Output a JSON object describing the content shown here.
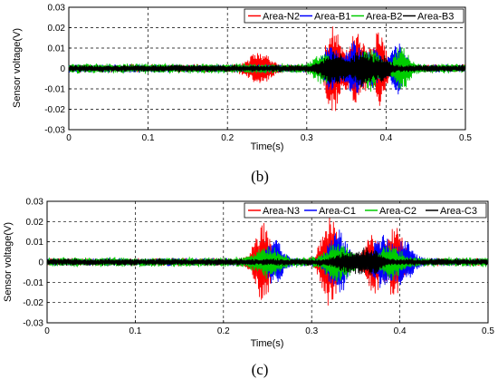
{
  "chart_data": [
    {
      "type": "line",
      "panel": "b",
      "caption": "(b)",
      "xlabel": "Time(s)",
      "ylabel": "Sensor voltage(V)",
      "xlim": [
        0,
        0.5
      ],
      "ylim": [
        -0.03,
        0.03
      ],
      "xticks": [
        0,
        0.1,
        0.2,
        0.3,
        0.4,
        0.5
      ],
      "xtick_labels": [
        "0",
        "0.1",
        "0.2",
        "0.3",
        "0.4",
        "0.5"
      ],
      "yticks": [
        -0.03,
        -0.02,
        -0.01,
        0,
        0.01,
        0.02,
        0.03
      ],
      "ytick_labels": [
        "-0.03",
        "-0.02",
        "-0.01",
        "0",
        "0.01",
        "0.02",
        "0.03"
      ],
      "grid": true,
      "legend_position": "top-right",
      "series": [
        {
          "name": "Area-N2",
          "color": "#ff0000",
          "baseline": 0.002,
          "bursts": [
            [
              0.24,
              0.0065,
              0.012
            ],
            [
              0.333,
              0.021,
              0.008
            ],
            [
              0.362,
              0.016,
              0.009
            ],
            [
              0.39,
              0.018,
              0.008
            ]
          ]
        },
        {
          "name": "Area-B1",
          "color": "#0000ff",
          "baseline": 0.002,
          "bursts": [
            [
              0.33,
              0.01,
              0.008
            ],
            [
              0.36,
              0.012,
              0.009
            ],
            [
              0.385,
              0.008,
              0.008
            ],
            [
              0.415,
              0.011,
              0.008
            ]
          ]
        },
        {
          "name": "Area-B2",
          "color": "#00cc00",
          "baseline": 0.0025,
          "bursts": [
            [
              0.32,
              0.006,
              0.01
            ],
            [
              0.38,
              0.009,
              0.01
            ],
            [
              0.42,
              0.009,
              0.008
            ]
          ]
        },
        {
          "name": "Area-B3",
          "color": "#000000",
          "baseline": 0.0018,
          "bursts": [
            [
              0.335,
              0.007,
              0.012
            ],
            [
              0.37,
              0.008,
              0.01
            ],
            [
              0.395,
              0.005,
              0.008
            ]
          ]
        }
      ]
    },
    {
      "type": "line",
      "panel": "c",
      "caption": "(c)",
      "xlabel": "Time(s)",
      "ylabel": "Sensor voltage(V)",
      "xlim": [
        0,
        0.5
      ],
      "ylim": [
        -0.03,
        0.03
      ],
      "xticks": [
        0,
        0.1,
        0.2,
        0.3,
        0.4,
        0.5
      ],
      "xtick_labels": [
        "0",
        "0.1",
        "0.2",
        "0.3",
        "0.4",
        "0.5"
      ],
      "yticks": [
        -0.03,
        -0.02,
        -0.01,
        0,
        0.01,
        0.02,
        0.03
      ],
      "ytick_labels": [
        "-0.03",
        "-0.02",
        "-0.01",
        "0",
        "0.01",
        "0.02",
        "0.03"
      ],
      "grid": true,
      "legend_position": "top-right",
      "series": [
        {
          "name": "Area-N3",
          "color": "#ff0000",
          "baseline": 0.002,
          "bursts": [
            [
              0.245,
              0.019,
              0.008
            ],
            [
              0.32,
              0.022,
              0.008
            ],
            [
              0.37,
              0.014,
              0.008
            ],
            [
              0.395,
              0.017,
              0.008
            ]
          ]
        },
        {
          "name": "Area-C1",
          "color": "#0000ff",
          "baseline": 0.002,
          "bursts": [
            [
              0.258,
              0.01,
              0.008
            ],
            [
              0.33,
              0.016,
              0.009
            ],
            [
              0.38,
              0.012,
              0.009
            ],
            [
              0.405,
              0.01,
              0.008
            ]
          ]
        },
        {
          "name": "Area-C2",
          "color": "#00cc00",
          "baseline": 0.0025,
          "bursts": [
            [
              0.25,
              0.006,
              0.012
            ],
            [
              0.33,
              0.008,
              0.012
            ],
            [
              0.39,
              0.007,
              0.01
            ]
          ]
        },
        {
          "name": "Area-C3",
          "color": "#000000",
          "baseline": 0.0018,
          "bursts": [
            [
              0.365,
              0.006,
              0.01
            ],
            [
              0.34,
              0.004,
              0.01
            ]
          ]
        }
      ]
    }
  ]
}
